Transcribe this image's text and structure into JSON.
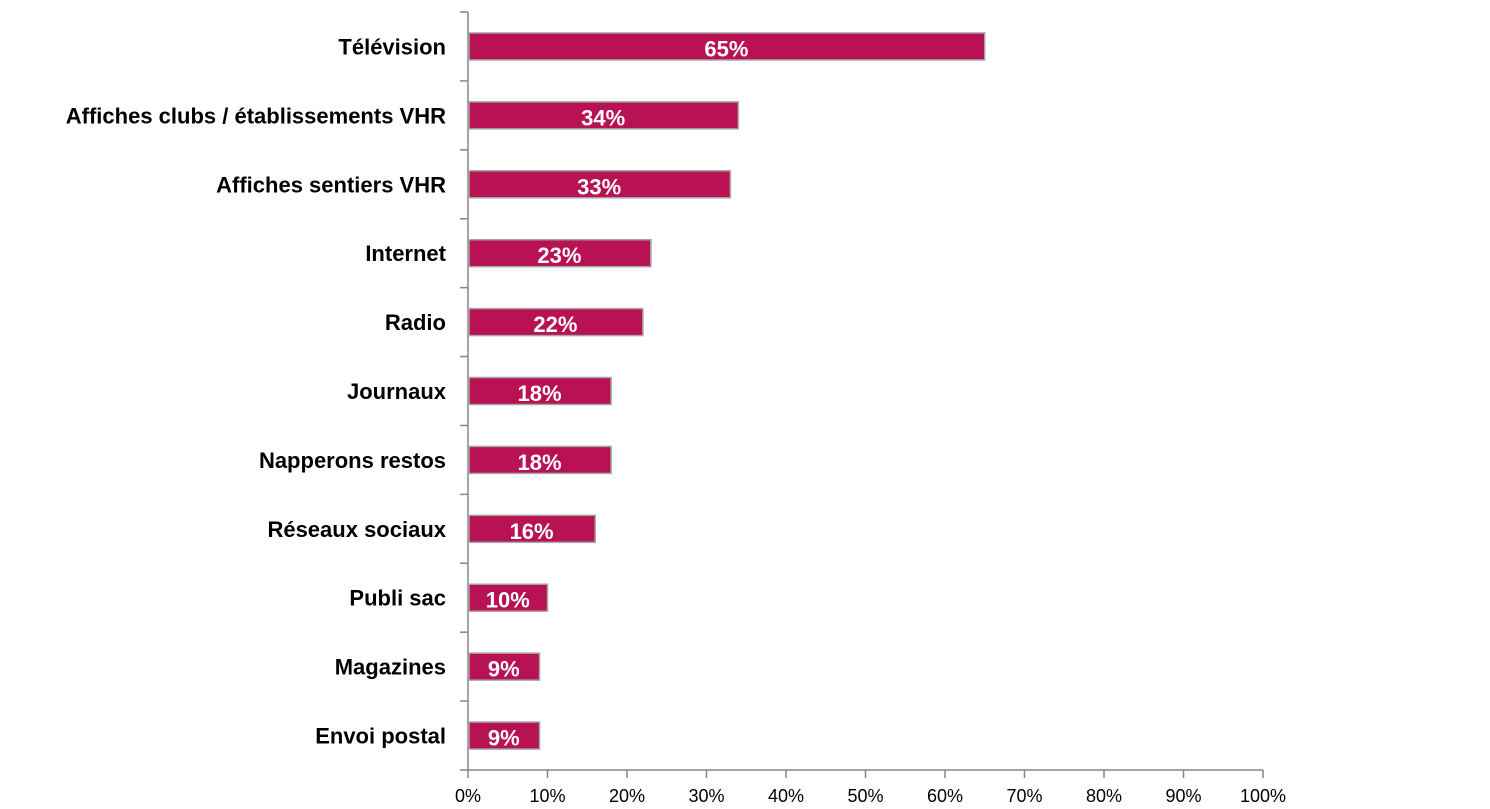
{
  "chart_data": {
    "type": "bar",
    "orientation": "horizontal",
    "categories": [
      "Télévision",
      "Affiches clubs / établissements VHR",
      "Affiches sentiers VHR",
      "Internet",
      "Radio",
      "Journaux",
      "Napperons restos",
      "Réseaux sociaux",
      "Publi sac",
      "Magazines",
      "Envoi postal"
    ],
    "values": [
      65,
      34,
      33,
      23,
      22,
      18,
      18,
      16,
      10,
      9,
      9
    ],
    "data_labels": [
      "65%",
      "34%",
      "33%",
      "23%",
      "22%",
      "18%",
      "18%",
      "16%",
      "10%",
      "9%",
      "9%"
    ],
    "xlim": [
      0,
      100
    ],
    "x_ticks": [
      0,
      10,
      20,
      30,
      40,
      50,
      60,
      70,
      80,
      90,
      100
    ],
    "x_tick_labels": [
      "0%",
      "10%",
      "20%",
      "30%",
      "40%",
      "50%",
      "60%",
      "70%",
      "80%",
      "90%",
      "100%"
    ],
    "bar_color": "#b81154",
    "bar_border_color": "#a6a6a6",
    "grid": false,
    "legend": "none",
    "title": "",
    "xlabel": "",
    "ylabel": ""
  }
}
